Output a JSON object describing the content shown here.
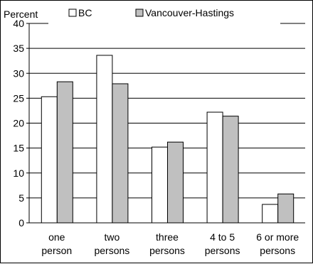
{
  "chart_data": {
    "type": "bar",
    "ylabel": "Percent",
    "ylim": [
      0,
      40
    ],
    "y_ticks": [
      0,
      5,
      10,
      15,
      20,
      25,
      30,
      35,
      40
    ],
    "grid": true,
    "legend_position": "top",
    "categories": [
      [
        "one",
        "person"
      ],
      [
        "two",
        "persons"
      ],
      [
        "three",
        "persons"
      ],
      [
        "4 to 5",
        "persons"
      ],
      [
        "6 or more",
        "persons"
      ]
    ],
    "series": [
      {
        "name": "BC",
        "color": "#ffffff",
        "values": [
          25.3,
          33.6,
          15.2,
          22.2,
          3.7
        ]
      },
      {
        "name": "Vancouver-Hastings",
        "color": "#c0c0c0",
        "values": [
          28.3,
          27.9,
          16.2,
          21.4,
          5.8
        ]
      }
    ]
  }
}
